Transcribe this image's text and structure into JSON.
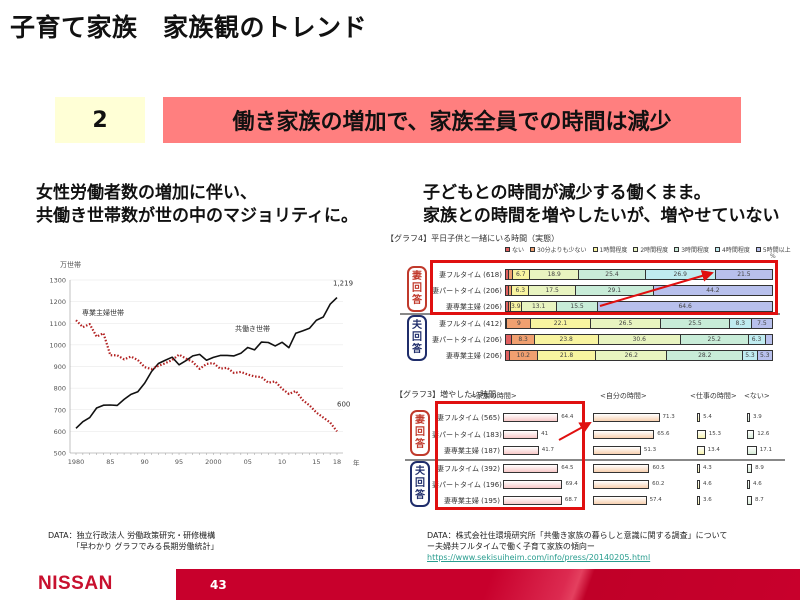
{
  "slide": {
    "title": "子育て家族　家族観のトレンド",
    "number": "2",
    "headline": "働き家族の増加で、家族全員での時間は減少",
    "page_number": "43",
    "logo": "NISSAN",
    "colors": {
      "headline_bg": "#ff7f7f",
      "number_bg": "#ffffd6",
      "footer_red": "#c8002c",
      "highlight_red": "#e01010"
    }
  },
  "left": {
    "subtitle_line1": "女性労働者数の増加に伴い、",
    "subtitle_line2": "共働き世帯数が世の中のマジョリティに。",
    "source_line1": "DATA：独立行政法人 労働政策研究・研修機構",
    "source_line2": "「早わかり グラフでみる長期労働統計」"
  },
  "right": {
    "subtitle_line1": "子どもとの時間が減少する働くまま。",
    "subtitle_line2": "家族との時間を増やしたいが、増やせていない",
    "source_line1": "DATA：株式会社住環境研究所「共働き家族の暮らしと意識に関する調査」について",
    "source_line2": "ー夫婦共フルタイムで働く子育て家族の傾向ー",
    "source_link": "https://www.sekisuiheim.com/info/press/20140205.html"
  },
  "chart_data": [
    {
      "type": "line",
      "title": "",
      "ylabel": "万世帯",
      "xlabel": "年",
      "ylim": [
        500,
        1300
      ],
      "yticks": [
        "1300",
        "1200",
        "1100",
        "1000",
        "900",
        "800",
        "700",
        "600",
        "500"
      ],
      "xticks": [
        "1980",
        "85",
        "90",
        "95",
        "2000",
        "05",
        "10",
        "15",
        "18"
      ],
      "grid": true,
      "x": [
        1980,
        1981,
        1982,
        1983,
        1984,
        1985,
        1986,
        1987,
        1988,
        1989,
        1990,
        1991,
        1992,
        1993,
        1994,
        1995,
        1996,
        1997,
        1998,
        1999,
        2000,
        2001,
        2002,
        2003,
        2004,
        2005,
        2006,
        2007,
        2008,
        2009,
        2010,
        2011,
        2012,
        2013,
        2014,
        2015,
        2016,
        2017,
        2018
      ],
      "series": [
        {
          "name": "共働き世帯",
          "style": "solid-black",
          "end_label": "1,219",
          "values": [
            614,
            645,
            664,
            708,
            721,
            722,
            720,
            748,
            771,
            783,
            823,
            877,
            914,
            929,
            943,
            908,
            927,
            949,
            956,
            929,
            942,
            951,
            951,
            949,
            961,
            988,
            977,
            1013,
            1011,
            995,
            1012,
            987,
            1054,
            1065,
            1077,
            1114,
            1129,
            1188,
            1219
          ]
        },
        {
          "name": "専業主婦世帯",
          "style": "dotted-red",
          "end_label": "600",
          "values": [
            1114,
            1082,
            1096,
            1038,
            1054,
            952,
            952,
            933,
            946,
            930,
            897,
            888,
            903,
            915,
            930,
            955,
            937,
            921,
            889,
            912,
            916,
            890,
            894,
            870,
            875,
            863,
            854,
            851,
            825,
            831,
            797,
            773,
            787,
            745,
            720,
            687,
            664,
            641,
            600
          ]
        }
      ],
      "annotations": [
        "専業主婦世帯",
        "共働き世帯",
        "1,219",
        "600"
      ]
    },
    {
      "type": "bar",
      "orientation": "horizontal-stacked",
      "title": "【グラフ4】平日子供と一緒にいる時間（実態）",
      "unit": "%",
      "legend": [
        "ない",
        "30分よりも少ない",
        "1時間程度",
        "2時間程度",
        "3時間程度",
        "4時間程度",
        "5時間以上"
      ],
      "legend_colors": [
        "#e06060",
        "#f0a070",
        "#f8f4a0",
        "#e8f4c0",
        "#c8ecd8",
        "#c0ecf0",
        "#b8c0ec"
      ],
      "groups": [
        {
          "name": "妻回答",
          "rows": [
            {
              "label": "妻フルタイム",
              "n": "(618)",
              "values": [
                1.0,
                1.5,
                6.7,
                18.9,
                25.4,
                26.9,
                21.5
              ]
            },
            {
              "label": "妻パートタイム",
              "n": "(206)",
              "values": [
                1.0,
                1.4,
                6.3,
                17.5,
                29.1,
                0,
                44.2
              ]
            },
            {
              "label": "妻専業主婦",
              "n": "(206)",
              "values": [
                1.0,
                0.9,
                3.9,
                13.1,
                15.5,
                0,
                64.6
              ]
            }
          ]
        },
        {
          "name": "夫回答",
          "rows": [
            {
              "label": "妻フルタイム",
              "n": "(412)",
              "values": [
                0.5,
                9.0,
                22.1,
                26.5,
                25.5,
                8.3,
                7.5
              ]
            },
            {
              "label": "妻パートタイム",
              "n": "(206)",
              "values": [
                2.4,
                8.3,
                23.8,
                30.6,
                25.2,
                6.3,
                2.4
              ]
            },
            {
              "label": "妻専業主婦",
              "n": "(206)",
              "values": [
                1.5,
                10.2,
                21.8,
                26.2,
                28.2,
                5.3,
                5.3
              ]
            }
          ]
        }
      ]
    },
    {
      "type": "bar",
      "orientation": "horizontal",
      "title": "【グラフ3】増やしたい時間",
      "unit": "%",
      "categories": [
        "<家族の時間>",
        "<自分の時間>",
        "<仕事の時間>",
        "<ない>"
      ],
      "category_colors": [
        "#f8c8c8",
        "#f8d0b0",
        "#f8f4b0",
        "#d8ecd8"
      ],
      "groups": [
        {
          "name": "妻回答",
          "rows": [
            {
              "label": "妻フルタイム",
              "n": "(565)",
              "values": [
                64.4,
                71.3,
                5.4,
                3.9
              ]
            },
            {
              "label": "妻パートタイム",
              "n": "(183)",
              "values": [
                41.0,
                65.6,
                15.3,
                12.6
              ]
            },
            {
              "label": "妻専業主婦",
              "n": "(187)",
              "values": [
                41.7,
                51.3,
                13.4,
                17.1
              ]
            }
          ]
        },
        {
          "name": "夫回答",
          "rows": [
            {
              "label": "妻フルタイム",
              "n": "(392)",
              "values": [
                64.5,
                60.5,
                4.3,
                8.9
              ]
            },
            {
              "label": "妻パートタイム",
              "n": "(196)",
              "values": [
                69.4,
                60.2,
                4.6,
                4.6
              ]
            },
            {
              "label": "妻専業主婦",
              "n": "(195)",
              "values": [
                68.7,
                57.4,
                3.6,
                8.7
              ]
            }
          ]
        }
      ]
    }
  ]
}
